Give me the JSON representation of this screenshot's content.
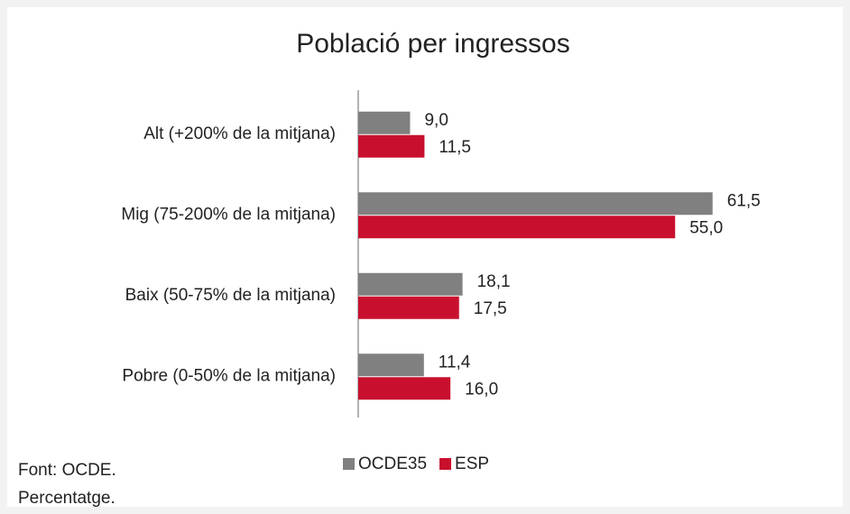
{
  "chart_data": {
    "type": "bar",
    "orientation": "horizontal",
    "title": "Població per ingressos",
    "categories": [
      "Alt (+200% de la mitjana)",
      "Mig (75-200% de la mitjana)",
      "Baix (50-75% de la mitjana)",
      "Pobre (0-50% de la mitjana)"
    ],
    "series": [
      {
        "name": "OCDE35",
        "color": "#808080",
        "values": [
          9.0,
          61.5,
          18.1,
          11.4
        ],
        "value_labels": [
          "9,0",
          "61,5",
          "18,1",
          "11,4"
        ]
      },
      {
        "name": "ESP",
        "color": "#c8102e",
        "values": [
          11.5,
          55.0,
          17.5,
          16.0
        ],
        "value_labels": [
          "11,5",
          "55,0",
          "17,5",
          "16,0"
        ]
      }
    ],
    "xlim": [
      0,
      70
    ],
    "notes": [
      "Font: OCDE.",
      "Percentatge."
    ]
  }
}
